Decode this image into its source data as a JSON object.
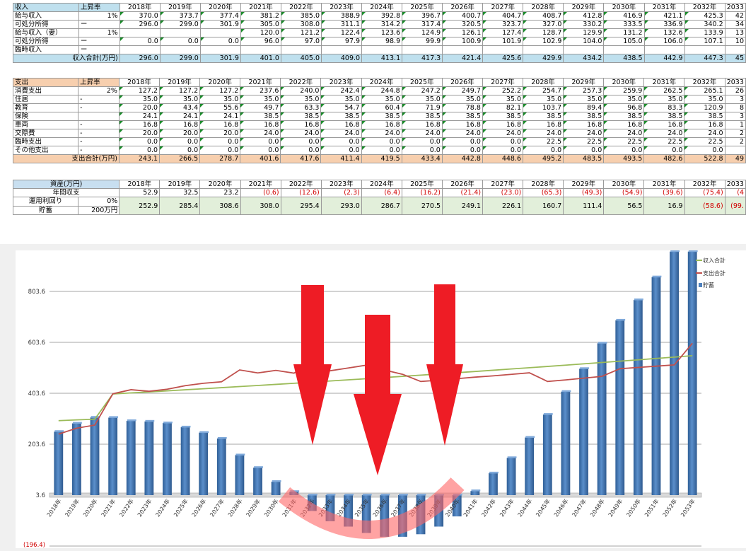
{
  "years": [
    "2018年",
    "2019年",
    "2020年",
    "2021年",
    "2022年",
    "2023年",
    "2024年",
    "2025年",
    "2026年",
    "2027年",
    "2028年",
    "2029年",
    "2030年",
    "2031年",
    "2032年",
    "2033"
  ],
  "income": {
    "header": [
      "収入",
      "上昇率"
    ],
    "rows": [
      {
        "label": "給与収入",
        "rate": "1%",
        "values": [
          "370.0",
          "373.7",
          "377.4",
          "381.2",
          "385.0",
          "388.9",
          "392.8",
          "396.7",
          "400.7",
          "404.7",
          "408.7",
          "412.8",
          "416.9",
          "421.1",
          "425.3",
          "42"
        ]
      },
      {
        "label": "可処分所得",
        "rate": "ー",
        "values": [
          "296.0",
          "299.0",
          "301.9",
          "305.0",
          "308.0",
          "311.1",
          "314.2",
          "317.4",
          "320.5",
          "323.7",
          "327.0",
          "330.2",
          "333.5",
          "336.9",
          "340.2",
          "34"
        ]
      },
      {
        "label": "給与収入（妻）",
        "rate": "1%",
        "values": [
          "",
          "",
          "",
          "120.0",
          "121.2",
          "122.4",
          "123.6",
          "124.9",
          "126.1",
          "127.4",
          "128.7",
          "129.9",
          "131.2",
          "132.6",
          "133.9",
          "13"
        ]
      },
      {
        "label": "可処分所得",
        "rate": "ー",
        "values": [
          "0.0",
          "0.0",
          "0.0",
          "96.0",
          "97.0",
          "97.9",
          "98.9",
          "99.9",
          "100.9",
          "101.9",
          "102.9",
          "104.0",
          "105.0",
          "106.0",
          "107.1",
          "10"
        ]
      },
      {
        "label": "臨時収入",
        "rate": "ー",
        "values": [
          "",
          "",
          "",
          "",
          "",
          "",
          "",
          "",
          "",
          "",
          "",
          "",
          "",
          "",
          "",
          ""
        ]
      }
    ],
    "total": {
      "label": "収入合計(万円)",
      "values": [
        "296.0",
        "299.0",
        "301.9",
        "401.0",
        "405.0",
        "409.0",
        "413.1",
        "417.3",
        "421.4",
        "425.6",
        "429.9",
        "434.2",
        "438.5",
        "442.9",
        "447.3",
        "45"
      ]
    }
  },
  "expense": {
    "header": [
      "支出",
      "上昇率"
    ],
    "rows": [
      {
        "label": "消費支出",
        "rate": "2%",
        "values": [
          "127.2",
          "127.2",
          "127.2",
          "237.6",
          "240.0",
          "242.4",
          "244.8",
          "247.2",
          "249.7",
          "252.2",
          "254.7",
          "257.3",
          "259.9",
          "262.5",
          "265.1",
          "26"
        ]
      },
      {
        "label": "住居",
        "rate": "-",
        "values": [
          "35.0",
          "35.0",
          "35.0",
          "35.0",
          "35.0",
          "35.0",
          "35.0",
          "35.0",
          "35.0",
          "35.0",
          "35.0",
          "35.0",
          "35.0",
          "35.0",
          "35.0",
          "3"
        ]
      },
      {
        "label": "教育",
        "rate": "-",
        "values": [
          "20.0",
          "43.4",
          "55.6",
          "49.7",
          "63.3",
          "54.7",
          "60.4",
          "71.9",
          "78.8",
          "82.1",
          "103.7",
          "89.4",
          "96.8",
          "83.3",
          "120.9",
          "8"
        ]
      },
      {
        "label": "保険",
        "rate": "",
        "values": [
          "24.1",
          "24.1",
          "24.1",
          "38.5",
          "38.5",
          "38.5",
          "38.5",
          "38.5",
          "38.5",
          "38.5",
          "38.5",
          "38.5",
          "38.5",
          "38.5",
          "38.5",
          "3"
        ]
      },
      {
        "label": "車両",
        "rate": "-",
        "values": [
          "16.8",
          "16.8",
          "16.8",
          "16.8",
          "16.8",
          "16.8",
          "16.8",
          "16.8",
          "16.8",
          "16.8",
          "16.8",
          "16.8",
          "16.8",
          "16.8",
          "16.8",
          "1"
        ]
      },
      {
        "label": "交際費",
        "rate": "-",
        "values": [
          "20.0",
          "20.0",
          "20.0",
          "24.0",
          "24.0",
          "24.0",
          "24.0",
          "24.0",
          "24.0",
          "24.0",
          "24.0",
          "24.0",
          "24.0",
          "24.0",
          "24.0",
          "2"
        ]
      },
      {
        "label": "臨時支出",
        "rate": "-",
        "values": [
          "0.0",
          "0.0",
          "0.0",
          "0.0",
          "0.0",
          "0.0",
          "0.0",
          "0.0",
          "0.0",
          "0.0",
          "22.5",
          "22.5",
          "22.5",
          "22.5",
          "22.5",
          "2"
        ]
      },
      {
        "label": "その他支出",
        "rate": "-",
        "values": [
          "0.0",
          "0.0",
          "0.0",
          "0.0",
          "0.0",
          "0.0",
          "0.0",
          "0.0",
          "0.0",
          "0.0",
          "0.0",
          "0.0",
          "0.0",
          "0.0",
          "0.0",
          ""
        ]
      }
    ],
    "total": {
      "label": "支出合計(万円)",
      "values": [
        "243.1",
        "266.5",
        "278.7",
        "401.6",
        "417.6",
        "411.4",
        "419.5",
        "433.4",
        "442.8",
        "448.6",
        "495.2",
        "483.5",
        "493.5",
        "482.6",
        "522.8",
        "49"
      ]
    }
  },
  "assets": {
    "header": "資産(万円)",
    "annual_label": "年間収支",
    "annual_values": [
      "52.9",
      "32.5",
      "23.2",
      "(0.6)",
      "(12.6)",
      "(2.3)",
      "(6.4)",
      "(16.2)",
      "(21.4)",
      "(23.0)",
      "(65.3)",
      "(49.3)",
      "(54.9)",
      "(39.6)",
      "(75.4)",
      "(4"
    ],
    "rate_label": "運用利回り",
    "rate_value": "0%",
    "savings_label": "貯蓄",
    "savings_initial": "200万円",
    "savings_values": [
      "252.9",
      "285.4",
      "308.6",
      "308.0",
      "295.4",
      "293.0",
      "286.7",
      "270.5",
      "249.1",
      "226.1",
      "160.7",
      "111.4",
      "56.5",
      "16.9",
      "(58.6)",
      "(99."
    ]
  },
  "chart_data": {
    "type": "bar",
    "title": "",
    "xlabel": "",
    "ylabel": "",
    "categories": [
      "2018年",
      "2019年",
      "2020年",
      "2021年",
      "2022年",
      "2023年",
      "2024年",
      "2025年",
      "2026年",
      "2027年",
      "2028年",
      "2029年",
      "2030年",
      "2031年",
      "2032年",
      "2033年",
      "2034年",
      "2035年",
      "2036年",
      "2037年",
      "2038年",
      "2039年",
      "2040年",
      "2041年",
      "2042年",
      "2043年",
      "2044年",
      "2045年",
      "2046年",
      "2047年",
      "2048年",
      "2049年",
      "2050年",
      "2051年",
      "2052年",
      "2053年"
    ],
    "y_ticks": [
      "(196.4)",
      "3.6",
      "203.6",
      "403.6",
      "603.6",
      "803.6"
    ],
    "ylim": [
      -196.4,
      1003.6
    ],
    "legend_position": "top-right",
    "series": [
      {
        "name": "貯蓄",
        "kind": "bar",
        "color": "#4f81bd",
        "values": [
          252.9,
          285.4,
          308.6,
          308.0,
          295.4,
          293.0,
          286.7,
          270.5,
          249.1,
          226.1,
          160.7,
          111.4,
          56.5,
          16.9,
          -58.6,
          -99.0,
          -120,
          -145,
          -160,
          -160,
          -150,
          -120,
          -80,
          20,
          90,
          150,
          230,
          320,
          410,
          500,
          600,
          690,
          770,
          860,
          960,
          960
        ]
      },
      {
        "name": "収入合計",
        "kind": "line",
        "color": "#9bbb59",
        "values": [
          296.0,
          299.0,
          301.9,
          401.0,
          405.0,
          409.0,
          413.1,
          417.3,
          421.4,
          425.6,
          429.9,
          434.2,
          438.5,
          442.9,
          447.3,
          451.8,
          456.3,
          460.8,
          465.4,
          470.1,
          474.8,
          479.5,
          484.3,
          489.2,
          494.1,
          499.0,
          504.0,
          509.0,
          514.1,
          519.2,
          524.4,
          529.6,
          534.9,
          540.3,
          545.7,
          551.2
        ]
      },
      {
        "name": "支出合計",
        "kind": "line",
        "color": "#c0504d",
        "values": [
          243.1,
          266.5,
          278.7,
          401.6,
          417.6,
          411.4,
          419.5,
          433.4,
          442.8,
          448.6,
          495.2,
          483.5,
          493.5,
          482.6,
          522.8,
          492,
          503,
          514,
          495,
          478,
          450,
          455,
          461,
          467,
          472,
          478,
          484,
          450,
          456,
          463,
          470,
          500,
          505,
          510,
          515,
          600
        ]
      }
    ]
  },
  "overlay": {
    "down_arrows": 3,
    "arrow_color": "#ee1c25",
    "curve_color": "#ff6666"
  }
}
